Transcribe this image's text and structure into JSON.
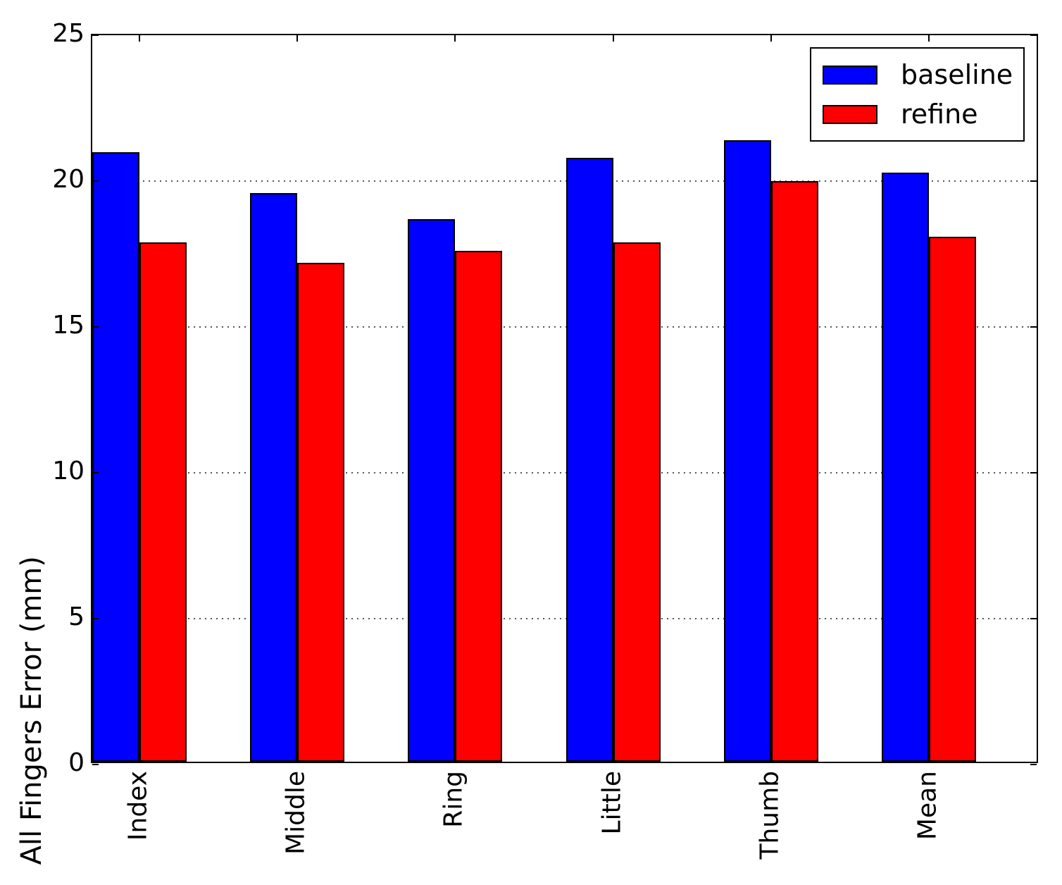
{
  "chart_data": {
    "type": "bar",
    "title": "",
    "xlabel": "",
    "ylabel": "All Fingers Error (mm)",
    "categories": [
      "Index",
      "Middle",
      "Ring",
      "Little",
      "Thumb",
      "Mean"
    ],
    "series": [
      {
        "name": "baseline",
        "color": "#0000ff",
        "values": [
          20.9,
          19.5,
          18.6,
          20.7,
          21.3,
          20.2
        ]
      },
      {
        "name": "refine",
        "color": "#ff0000",
        "values": [
          17.8,
          17.1,
          17.5,
          17.8,
          19.9,
          18.0
        ]
      }
    ],
    "ylim": [
      0,
      25
    ],
    "yticks": [
      0,
      5,
      10,
      15,
      20,
      25
    ],
    "grid": "horizontal-dotted",
    "legend_position": "upper-right",
    "bar_edge_color": "#000000",
    "xtick_label_rotation_deg": 90
  }
}
